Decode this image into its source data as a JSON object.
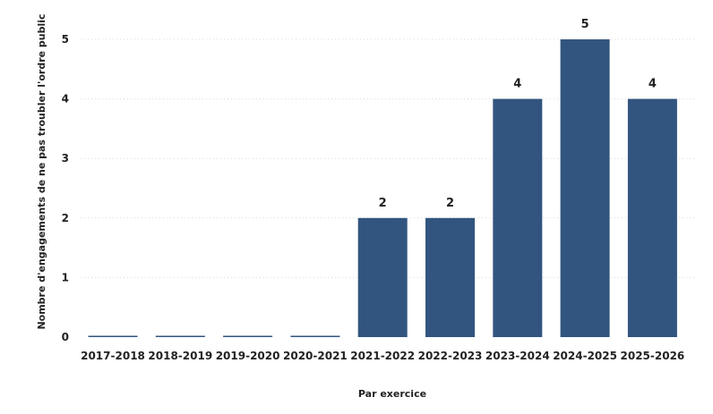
{
  "chart_data": {
    "type": "bar",
    "categories": [
      "2017-2018",
      "2018-2019",
      "2019-2020",
      "2020-2021",
      "2021-2022",
      "2022-2023",
      "2023-2024",
      "2024-2025",
      "2025-2026"
    ],
    "values": [
      0,
      0,
      0,
      0,
      2,
      2,
      4,
      5,
      4
    ],
    "data_labels": [
      "",
      "",
      "",
      "",
      "2",
      "2",
      "4",
      "5",
      "4"
    ],
    "xlabel": "Par exercice",
    "ylabel": "Nombre d'engagements de ne pas troubler l'ordre public",
    "ylim": [
      0,
      5
    ],
    "yticks": [
      "0",
      "1",
      "2",
      "3",
      "4",
      "5"
    ],
    "grid": true,
    "bar_color": "#32557f"
  }
}
